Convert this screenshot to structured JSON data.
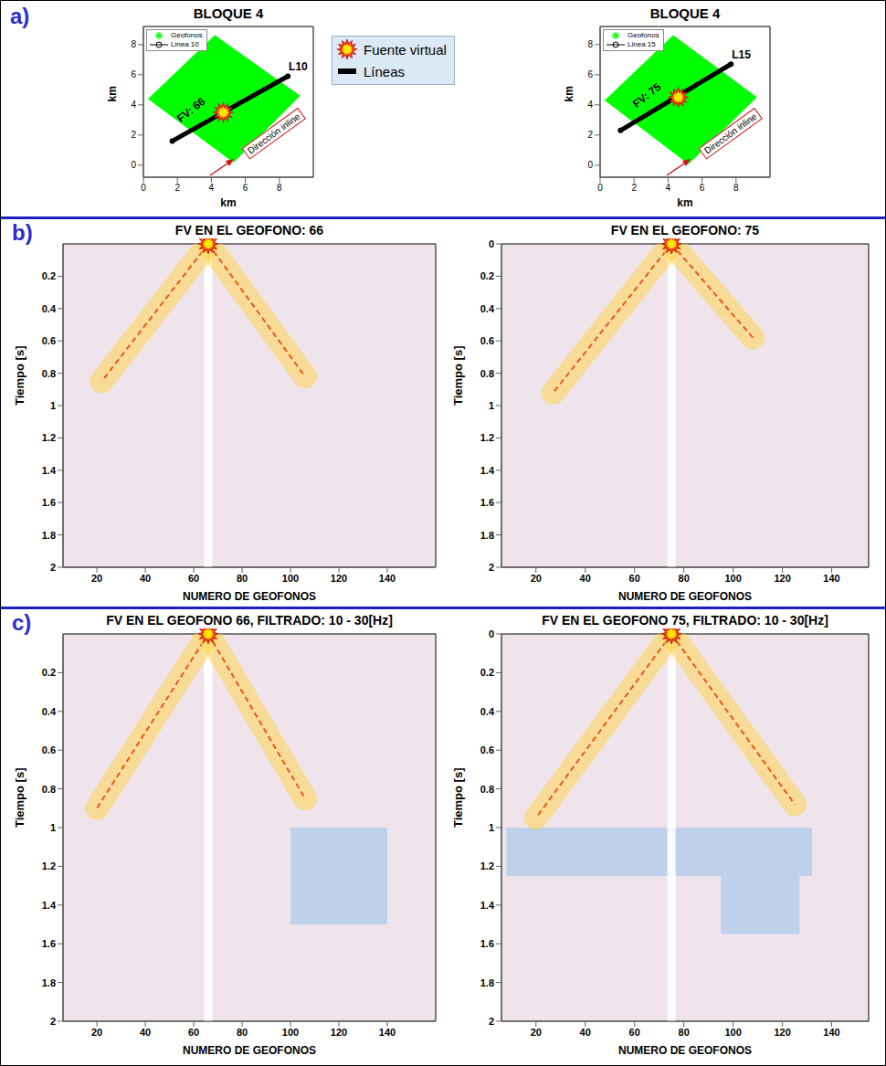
{
  "panel_labels": [
    "a)",
    "b)",
    "c)"
  ],
  "legend_box": {
    "items": [
      {
        "label": "Fuente virtual",
        "marker": "star"
      },
      {
        "label": "Líneas",
        "marker": "bar"
      }
    ]
  },
  "chart_data": [
    {
      "type": "map",
      "title": "BLOQUE 4",
      "xlabel": "km",
      "ylabel": "km",
      "xlim": [
        0,
        10
      ],
      "ylim": [
        -0.8,
        9.2
      ],
      "xticks": [
        0,
        2,
        4,
        6,
        8
      ],
      "yticks": [
        0,
        2,
        4,
        6,
        8
      ],
      "legend": "upper left",
      "series": [
        {
          "name": "Geofonos",
          "color": "#00ff00",
          "marker": "asterisk",
          "x": [
            0.3,
            4.2,
            9.2,
            5.3
          ],
          "y": [
            4.4,
            8.6,
            4.6,
            0.2
          ]
        },
        {
          "name": "Linea 10",
          "color": "#000000",
          "marker": "circle",
          "x": [
            1.7,
            8.5
          ],
          "y": [
            1.6,
            5.9
          ]
        }
      ],
      "virtual_source": {
        "x": 4.7,
        "y": 3.5
      },
      "line_label": "L10",
      "source_label": "FV: 66",
      "direction_label": "Dirección inline"
    },
    {
      "type": "map",
      "title": "BLOQUE 4",
      "xlabel": "km",
      "ylabel": "km",
      "xlim": [
        0,
        10
      ],
      "ylim": [
        -0.8,
        9.2
      ],
      "xticks": [
        0,
        2,
        4,
        6,
        8
      ],
      "yticks": [
        0,
        2,
        4,
        6,
        8
      ],
      "legend": "upper left",
      "series": [
        {
          "name": "Geofonos",
          "color": "#00ff00",
          "marker": "asterisk",
          "x": [
            0.3,
            4.3,
            9.2,
            5.2
          ],
          "y": [
            4.3,
            8.6,
            4.5,
            0.1
          ]
        },
        {
          "name": "Linea 15",
          "color": "#000000",
          "marker": "circle",
          "x": [
            1.2,
            7.7
          ],
          "y": [
            2.3,
            6.7
          ]
        }
      ],
      "virtual_source": {
        "x": 4.6,
        "y": 4.5
      },
      "line_label": "L15",
      "source_label": "FV: 75",
      "direction_label": "Dirección inline"
    },
    {
      "type": "seismic_gather",
      "title": "FV EN EL GEOFONO: 66",
      "xlabel": "NUMERO DE GEOFONOS",
      "ylabel": "Tiempo [s]",
      "xlim": [
        6,
        160
      ],
      "ylim": [
        0,
        2
      ],
      "xticks": [
        20,
        40,
        60,
        80,
        100,
        120,
        140
      ],
      "yticks": [
        0.2,
        0.4,
        0.6,
        0.8,
        1,
        1.2,
        1.4,
        1.6,
        1.8,
        2
      ],
      "virtual_source": {
        "geophone": 66,
        "time": 0
      },
      "arrivals": [
        {
          "color": "#ffd23f",
          "x": [
            66,
            22
          ],
          "y": [
            0,
            0.85
          ]
        },
        {
          "color": "#ffd23f",
          "x": [
            66,
            106
          ],
          "y": [
            0,
            0.82
          ]
        }
      ],
      "zones": []
    },
    {
      "type": "seismic_gather",
      "title": "FV EN EL GEOFONO: 75",
      "xlabel": "NUMERO DE GEOFONOS",
      "ylabel": "Tiempo [s]",
      "xlim": [
        6,
        155
      ],
      "ylim": [
        0,
        2
      ],
      "xticks": [
        20,
        40,
        60,
        80,
        100,
        120,
        140
      ],
      "yticks": [
        0,
        0.2,
        0.4,
        0.6,
        0.8,
        1,
        1.2,
        1.4,
        1.6,
        1.8,
        2
      ],
      "virtual_source": {
        "geophone": 75,
        "time": 0
      },
      "arrivals": [
        {
          "color": "#ffd23f",
          "x": [
            75,
            27
          ],
          "y": [
            0,
            0.92
          ]
        },
        {
          "color": "#ffd23f",
          "x": [
            75,
            108
          ],
          "y": [
            0,
            0.58
          ]
        }
      ],
      "zones": []
    },
    {
      "type": "seismic_gather",
      "title": "FV EN EL GEOFONO 66, FILTRADO: 10 - 30[Hz]",
      "xlabel": "NUMERO DE GEOFONOS",
      "ylabel": "Tiempo [s]",
      "xlim": [
        6,
        160
      ],
      "ylim": [
        0,
        2
      ],
      "xticks": [
        20,
        40,
        60,
        80,
        100,
        120,
        140
      ],
      "yticks": [
        0.2,
        0.4,
        0.6,
        0.8,
        1,
        1.2,
        1.4,
        1.6,
        1.8,
        2
      ],
      "virtual_source": {
        "geophone": 66,
        "time": 0
      },
      "arrivals": [
        {
          "color": "#ffd23f",
          "x": [
            66,
            20
          ],
          "y": [
            0,
            0.9
          ]
        },
        {
          "color": "#ffd23f",
          "x": [
            66,
            106
          ],
          "y": [
            0,
            0.85
          ]
        }
      ],
      "zones": [
        {
          "color": "#9ec5ea",
          "x": [
            100,
            140
          ],
          "y": [
            1.0,
            1.5
          ]
        }
      ]
    },
    {
      "type": "seismic_gather",
      "title": "FV EN EL GEOFONO 75, FILTRADO: 10 - 30[Hz]",
      "xlabel": "NUMERO DE GEOFONOS",
      "ylabel": "Tiempo [s]",
      "xlim": [
        6,
        155
      ],
      "ylim": [
        0,
        2
      ],
      "xticks": [
        20,
        40,
        60,
        80,
        100,
        120,
        140
      ],
      "yticks": [
        0,
        0.2,
        0.4,
        0.6,
        0.8,
        1,
        1.2,
        1.4,
        1.6,
        1.8,
        2
      ],
      "virtual_source": {
        "geophone": 75,
        "time": 0
      },
      "arrivals": [
        {
          "color": "#ffd23f",
          "x": [
            75,
            20
          ],
          "y": [
            0,
            0.95
          ]
        },
        {
          "color": "#ffd23f",
          "x": [
            75,
            125
          ],
          "y": [
            0,
            0.88
          ]
        }
      ],
      "zones": [
        {
          "color": "#9ec5ea",
          "x": [
            8,
            132
          ],
          "y": [
            1.0,
            1.25
          ]
        },
        {
          "color": "#9ec5ea",
          "x": [
            95,
            127
          ],
          "y": [
            1.25,
            1.55
          ]
        }
      ]
    }
  ]
}
